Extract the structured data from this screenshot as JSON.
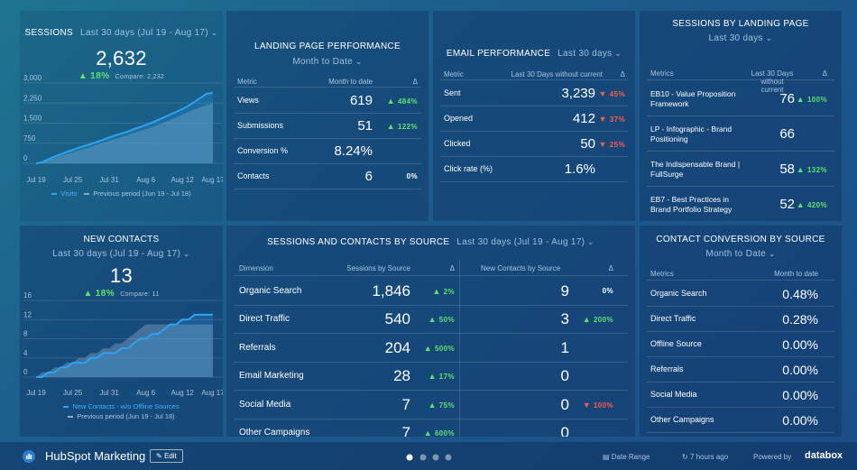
{
  "sessions": {
    "title": "SESSIONS",
    "range": "Last 30 days (Jul 19 - Aug 17)",
    "value": "2,632",
    "change": {
      "text": "18%",
      "dir": "up"
    },
    "compare": "Compare: 2,232",
    "chart": {
      "type": "area-line",
      "x": [
        "Jul 19",
        "Jul 20",
        "Jul 21",
        "Jul 22",
        "Jul 23",
        "Jul 24",
        "Jul 25",
        "Jul 26",
        "Jul 27",
        "Jul 28",
        "Jul 29",
        "Jul 30",
        "Jul 31",
        "Aug 1",
        "Aug 2",
        "Aug 3",
        "Aug 4",
        "Aug 5",
        "Aug 6",
        "Aug 7",
        "Aug 8",
        "Aug 9",
        "Aug 10",
        "Aug 11",
        "Aug 12",
        "Aug 13",
        "Aug 14",
        "Aug 15",
        "Aug 16",
        "Aug 17"
      ],
      "xticks": [
        "Jul 19",
        "Jul 25",
        "Jul 31",
        "Aug 6",
        "Aug 12",
        "Aug 17"
      ],
      "ylim": [
        0,
        3000
      ],
      "yticks": [
        0,
        750,
        {
          "value": 1500,
          "label": "1,500"
        },
        {
          "value": 2250,
          "label": "2,250"
        },
        {
          "value": 3000,
          "label": "3,000"
        }
      ],
      "series": [
        {
          "name": "Previous period (Jun 19 - Jul 18)",
          "color": "#8fabc8",
          "values": [
            0,
            60,
            130,
            200,
            270,
            340,
            410,
            480,
            550,
            620,
            700,
            770,
            840,
            910,
            980,
            1050,
            1130,
            1200,
            1280,
            1360,
            1440,
            1530,
            1620,
            1720,
            1820,
            1920,
            2020,
            2100,
            2180,
            2232
          ]
        },
        {
          "name": "Visits",
          "color": "#2ea3f2",
          "values": [
            0,
            40,
            150,
            250,
            330,
            420,
            500,
            580,
            650,
            720,
            800,
            880,
            960,
            1040,
            1110,
            1180,
            1270,
            1350,
            1430,
            1520,
            1620,
            1720,
            1820,
            1920,
            2030,
            2150,
            2300,
            2450,
            2600,
            2632
          ]
        }
      ]
    }
  },
  "contacts": {
    "title": "NEW CONTACTS",
    "range": "Last 30 days (Jul 19 - Aug 17)",
    "value": "13",
    "change": {
      "text": "18%",
      "dir": "up"
    },
    "compare": "Compare: 11",
    "chart": {
      "type": "area-line",
      "x": [
        "Jul 19",
        "Jul 20",
        "Jul 21",
        "Jul 22",
        "Jul 23",
        "Jul 24",
        "Jul 25",
        "Jul 26",
        "Jul 27",
        "Jul 28",
        "Jul 29",
        "Jul 30",
        "Jul 31",
        "Aug 1",
        "Aug 2",
        "Aug 3",
        "Aug 4",
        "Aug 5",
        "Aug 6",
        "Aug 7",
        "Aug 8",
        "Aug 9",
        "Aug 10",
        "Aug 11",
        "Aug 12",
        "Aug 13",
        "Aug 14",
        "Aug 15",
        "Aug 16",
        "Aug 17"
      ],
      "xticks": [
        "Jul 19",
        "Jul 25",
        "Jul 31",
        "Aug 6",
        "Aug 12",
        "Aug 17"
      ],
      "ylim": [
        0,
        16
      ],
      "yticks": [
        0,
        4,
        8,
        12,
        16
      ],
      "series": [
        {
          "name": "Previous period (Jun 19 - Jul 18)",
          "color": "#8fabc8",
          "values": [
            0,
            1,
            1,
            2,
            2,
            3,
            3,
            4,
            4,
            5,
            5,
            6,
            6,
            7,
            7,
            8,
            9,
            10,
            11,
            11,
            11,
            11,
            11,
            11,
            11,
            11,
            11,
            11,
            11,
            11
          ]
        },
        {
          "name": "New Contacts - w/o Offline Sources",
          "color": "#2ea3f2",
          "values": [
            0,
            0,
            1,
            1,
            2,
            2,
            3,
            3,
            3,
            4,
            4,
            5,
            5,
            5,
            6,
            6,
            7,
            8,
            8,
            9,
            9,
            10,
            11,
            11,
            12,
            12,
            13,
            13,
            13,
            13
          ]
        }
      ]
    }
  },
  "lp": {
    "title": "LANDING PAGE PERFORMANCE",
    "subtitle": "Month to Date",
    "headers": [
      "Metric",
      "Month to date",
      "Δ"
    ],
    "rows": [
      [
        "Views",
        "619",
        {
          "text": "484%",
          "dir": "up"
        }
      ],
      [
        "Submissions",
        "51",
        {
          "text": "122%",
          "dir": "up"
        }
      ],
      [
        "Conversion %",
        "8.24%"
      ],
      [
        "Contacts",
        "6",
        {
          "text": "0%"
        }
      ]
    ]
  },
  "email": {
    "title": "EMAIL PERFORMANCE",
    "subtitle": "Last 30 days",
    "headers": [
      "Metric",
      "Last 30 Days without current",
      "Δ"
    ],
    "rows": [
      [
        "Sent",
        "3,239",
        {
          "text": "45%",
          "dir": "down"
        }
      ],
      [
        "Opened",
        "412",
        {
          "text": "37%",
          "dir": "down"
        }
      ],
      [
        "Clicked",
        "50",
        {
          "text": "25%",
          "dir": "down"
        }
      ],
      [
        "Click rate (%)",
        "1.6%"
      ]
    ]
  },
  "slp": {
    "title": "SESSIONS BY LANDING PAGE",
    "subtitle": "Last 30 days",
    "headers": [
      "Metrics",
      "Last 30 Days without current",
      "Δ"
    ],
    "rows": [
      [
        "EB10 - Value Proposition Framework",
        "76",
        {
          "text": "100%",
          "dir": "up"
        }
      ],
      [
        "LP - Infographic - Brand Positioning",
        "66"
      ],
      [
        "The Indispensable Brand | FullSurge",
        "58",
        {
          "text": "132%",
          "dir": "up"
        }
      ],
      [
        "EB7 - Best Practices in Brand Portfolio Strategy",
        "52",
        {
          "text": "420%",
          "dir": "up"
        }
      ]
    ]
  },
  "src": {
    "title": "SESSIONS AND CONTACTS BY SOURCE",
    "subtitle": "Last 30 days (Jul 19 - Aug 17)",
    "headers": [
      "Dimension",
      "Sessions by Source",
      "Δ",
      "New Contacts by Source",
      "Δ"
    ],
    "rows": [
      [
        "Organic Search",
        "1,846",
        {
          "text": "2%",
          "dir": "up"
        },
        "9",
        {
          "text": "0%"
        }
      ],
      [
        "Direct Traffic",
        "540",
        {
          "text": "50%",
          "dir": "up"
        },
        "3",
        {
          "text": "200%",
          "dir": "up"
        }
      ],
      [
        "Referrals",
        "204",
        {
          "text": "500%",
          "dir": "up"
        },
        "1"
      ],
      [
        "Email Marketing",
        "28",
        {
          "text": "17%",
          "dir": "up"
        },
        "0"
      ],
      [
        "Social Media",
        "7",
        {
          "text": "75%",
          "dir": "up"
        },
        "0",
        {
          "text": "100%",
          "dir": "down"
        }
      ],
      [
        "Other Campaigns",
        "7",
        {
          "text": "600%",
          "dir": "up"
        },
        "0"
      ]
    ]
  },
  "conv": {
    "title": "CONTACT CONVERSION BY SOURCE",
    "subtitle": "Month to Date",
    "headers": [
      "Metrics",
      "Month to date"
    ],
    "rows": [
      [
        "Organic Search",
        "0.48%"
      ],
      [
        "Direct Traffic",
        "0.28%"
      ],
      [
        "Offline Source",
        "0.00%"
      ],
      [
        "Referrals",
        "0.00%"
      ],
      [
        "Social Media",
        "0.00%"
      ],
      [
        "Other Campaigns",
        "0.00%"
      ]
    ]
  },
  "footer": {
    "name": "HubSpot Marketing",
    "edit": "Edit",
    "date_range": "Date Range",
    "updated": "7 hours ago",
    "powered": "Powered by",
    "brand": "databox"
  }
}
